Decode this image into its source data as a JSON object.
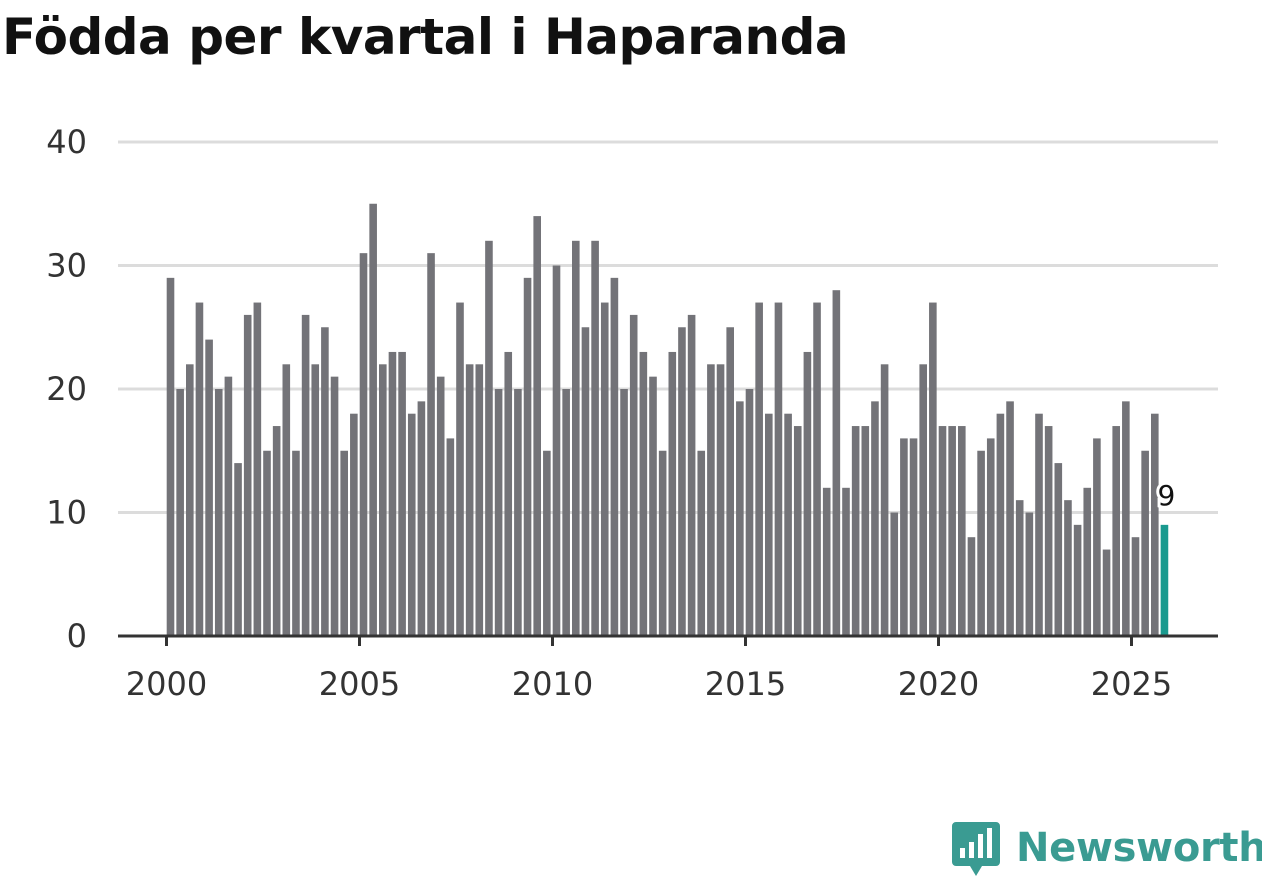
{
  "chart_data": {
    "type": "bar",
    "title": "Födda per kvartal i Haparanda",
    "xlabel": "",
    "ylabel": "",
    "ylim": [
      0,
      40
    ],
    "yticks": [
      "0",
      "10",
      "20",
      "30",
      "40"
    ],
    "xticks": [
      "2000",
      "2005",
      "2010",
      "2015",
      "2020",
      "2025"
    ],
    "start_year": 2000,
    "periods_per_year": 4,
    "values": [
      29,
      20,
      22,
      27,
      24,
      20,
      21,
      14,
      26,
      27,
      15,
      17,
      22,
      15,
      26,
      22,
      25,
      21,
      15,
      18,
      31,
      35,
      22,
      23,
      23,
      18,
      19,
      31,
      21,
      16,
      27,
      22,
      22,
      32,
      20,
      23,
      20,
      29,
      34,
      15,
      30,
      20,
      32,
      25,
      32,
      27,
      29,
      20,
      26,
      23,
      21,
      15,
      23,
      25,
      26,
      15,
      22,
      22,
      25,
      19,
      20,
      27,
      18,
      27,
      18,
      17,
      23,
      27,
      12,
      28,
      12,
      17,
      17,
      19,
      22,
      10,
      16,
      16,
      22,
      27,
      17,
      17,
      17,
      8,
      15,
      16,
      18,
      19,
      11,
      10,
      18,
      17,
      14,
      11,
      9,
      12,
      16,
      7,
      17,
      19,
      8,
      15,
      18,
      9
    ],
    "highlight_last": true,
    "last_value_label": "9",
    "bar_color": "#737378",
    "highlight_color": "#1a9a8f"
  },
  "brand": {
    "name": "Newsworthy",
    "color": "#3a9b92"
  }
}
